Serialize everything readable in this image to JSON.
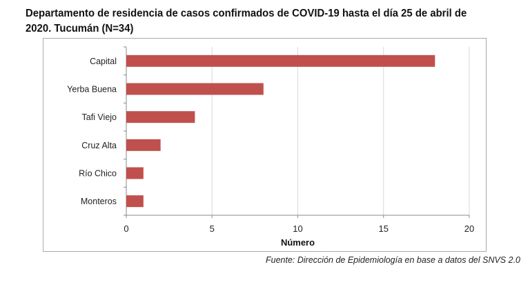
{
  "title": "Departamento de residencia de casos confirmados de COVID-19 hasta el día 25 de abril de 2020. Tucumán (N=34)",
  "source": "Fuente: Dirección de Epidemiología en base a datos del SNVS 2.0",
  "chart_data": {
    "type": "bar",
    "orientation": "horizontal",
    "title": "Departamento de residencia de casos confirmados de COVID-19 hasta el día 25 de abril de 2020. Tucumán (N=34)",
    "categories": [
      "Capital",
      "Yerba Buena",
      "Tafi Viejo",
      "Cruz Alta",
      "Río Chico",
      "Monteros"
    ],
    "values": [
      18,
      8,
      4,
      2,
      1,
      1
    ],
    "xlabel": "Número",
    "ylabel": "",
    "xlim": [
      0,
      20
    ],
    "xticks": [
      "0",
      "5",
      "10",
      "15",
      "20"
    ],
    "grid": true,
    "bar_color": "#c0504d"
  }
}
